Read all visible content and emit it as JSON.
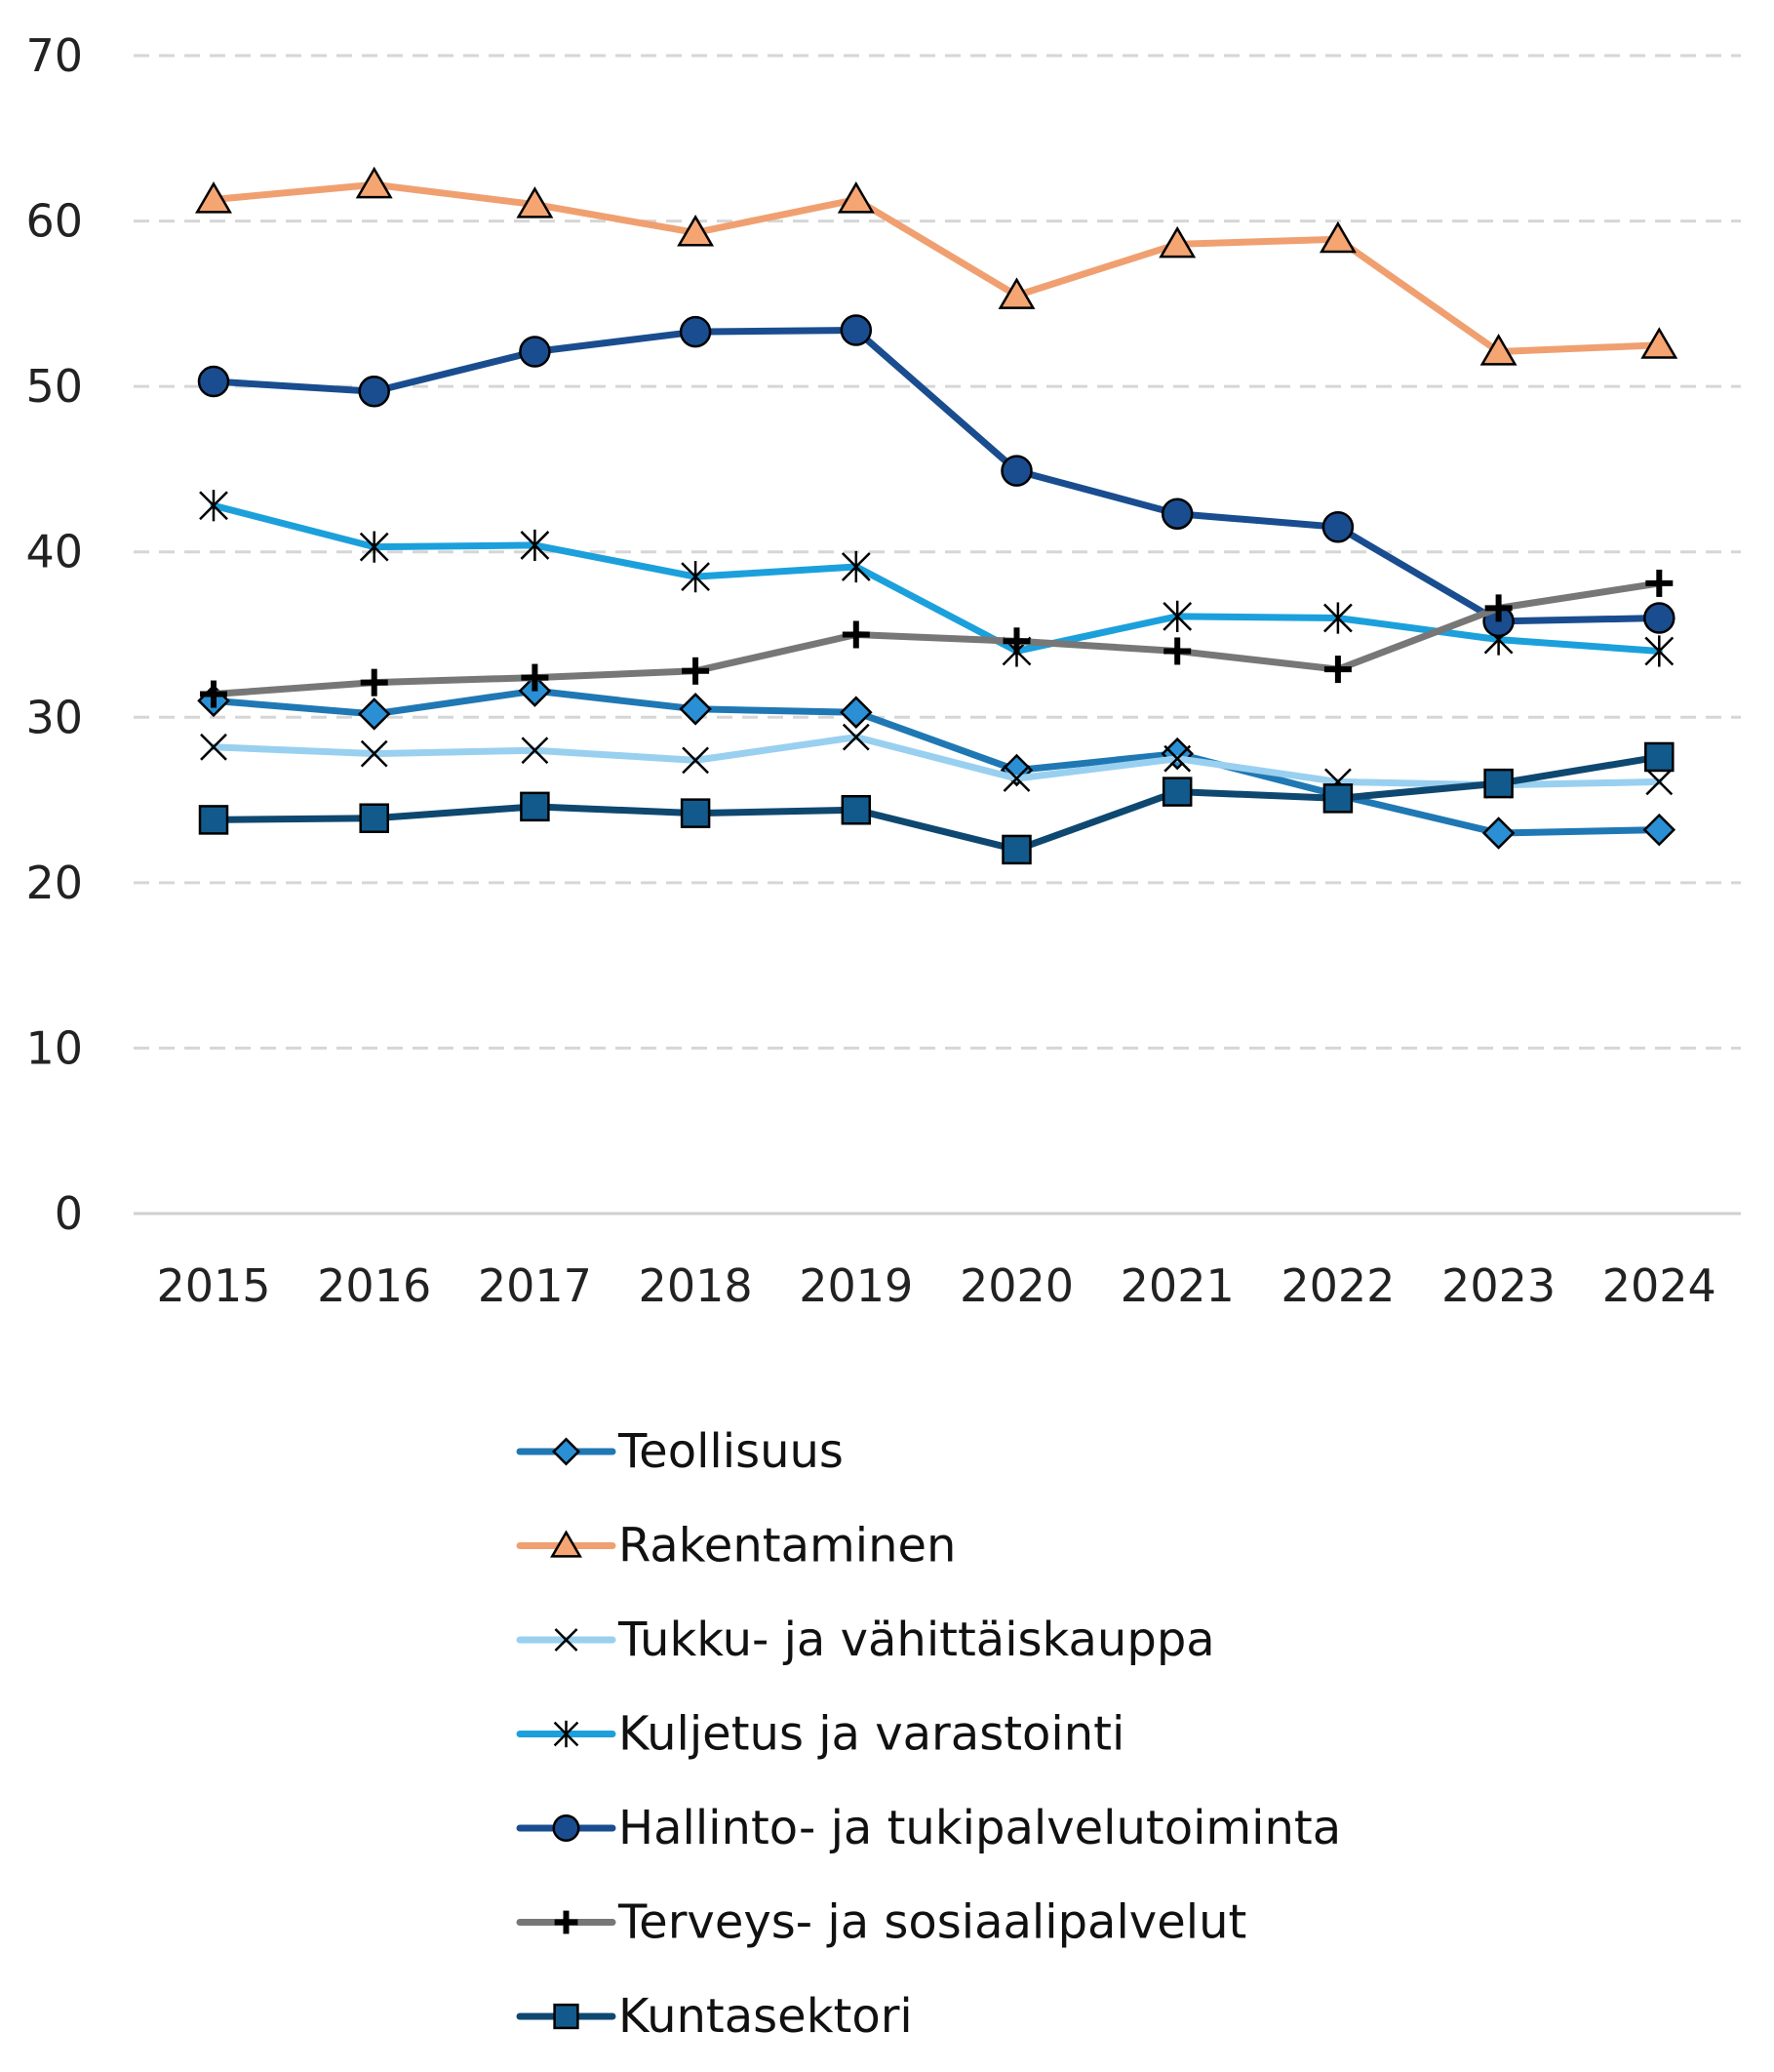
{
  "chart_data": {
    "type": "line",
    "title": "",
    "xlabel": "",
    "ylabel": "",
    "ylim": [
      0,
      70
    ],
    "yticks": [
      0,
      10,
      20,
      30,
      40,
      50,
      60,
      70
    ],
    "grid": true,
    "legend_position": "bottom",
    "categories": [
      "2015",
      "2016",
      "2017",
      "2018",
      "2019",
      "2020",
      "2021",
      "2022",
      "2023",
      "2024"
    ],
    "series": [
      {
        "name": "Teollisuus",
        "color": "#1f78b4",
        "marker": "diamond",
        "marker_fill": "#2a8fd4",
        "values": [
          31.0,
          30.2,
          31.6,
          30.5,
          30.3,
          26.8,
          27.8,
          25.3,
          23.0,
          23.2
        ]
      },
      {
        "name": "Rakentaminen",
        "color": "#f0a070",
        "marker": "triangle",
        "marker_fill": "#f4a572",
        "values": [
          61.3,
          62.2,
          61.0,
          59.3,
          61.3,
          55.5,
          58.6,
          58.9,
          52.1,
          52.5
        ]
      },
      {
        "name": "Tukku- ja vähittäiskauppa",
        "color": "#99d0f0",
        "marker": "x",
        "marker_fill": "#000000",
        "values": [
          28.2,
          27.8,
          28.0,
          27.4,
          28.8,
          26.3,
          27.5,
          26.1,
          25.9,
          26.1
        ]
      },
      {
        "name": "Kuljetus ja varastointi",
        "color": "#1ca0dc",
        "marker": "asterisk",
        "marker_fill": "#000000",
        "values": [
          42.8,
          40.3,
          40.4,
          38.5,
          39.1,
          34.0,
          36.1,
          36.0,
          34.7,
          34.0
        ]
      },
      {
        "name": "Hallinto- ja tukipalvelutoiminta",
        "color": "#1a4d8f",
        "marker": "circle",
        "marker_fill": "#1a4d8f",
        "values": [
          50.3,
          49.7,
          52.1,
          53.3,
          53.4,
          44.9,
          42.3,
          41.5,
          35.8,
          36.0
        ]
      },
      {
        "name": "Terveys- ja sosiaalipalvelut",
        "color": "#777777",
        "marker": "plus",
        "marker_fill": "#000000",
        "values": [
          31.4,
          32.1,
          32.4,
          32.8,
          35.0,
          34.6,
          34.0,
          32.9,
          36.6,
          38.1
        ]
      },
      {
        "name": "Kuntasektori",
        "color": "#0e4870",
        "marker": "square",
        "marker_fill": "#125a8c",
        "values": [
          23.8,
          23.9,
          24.6,
          24.2,
          24.4,
          22.0,
          25.5,
          25.1,
          26.0,
          27.6
        ]
      }
    ]
  }
}
